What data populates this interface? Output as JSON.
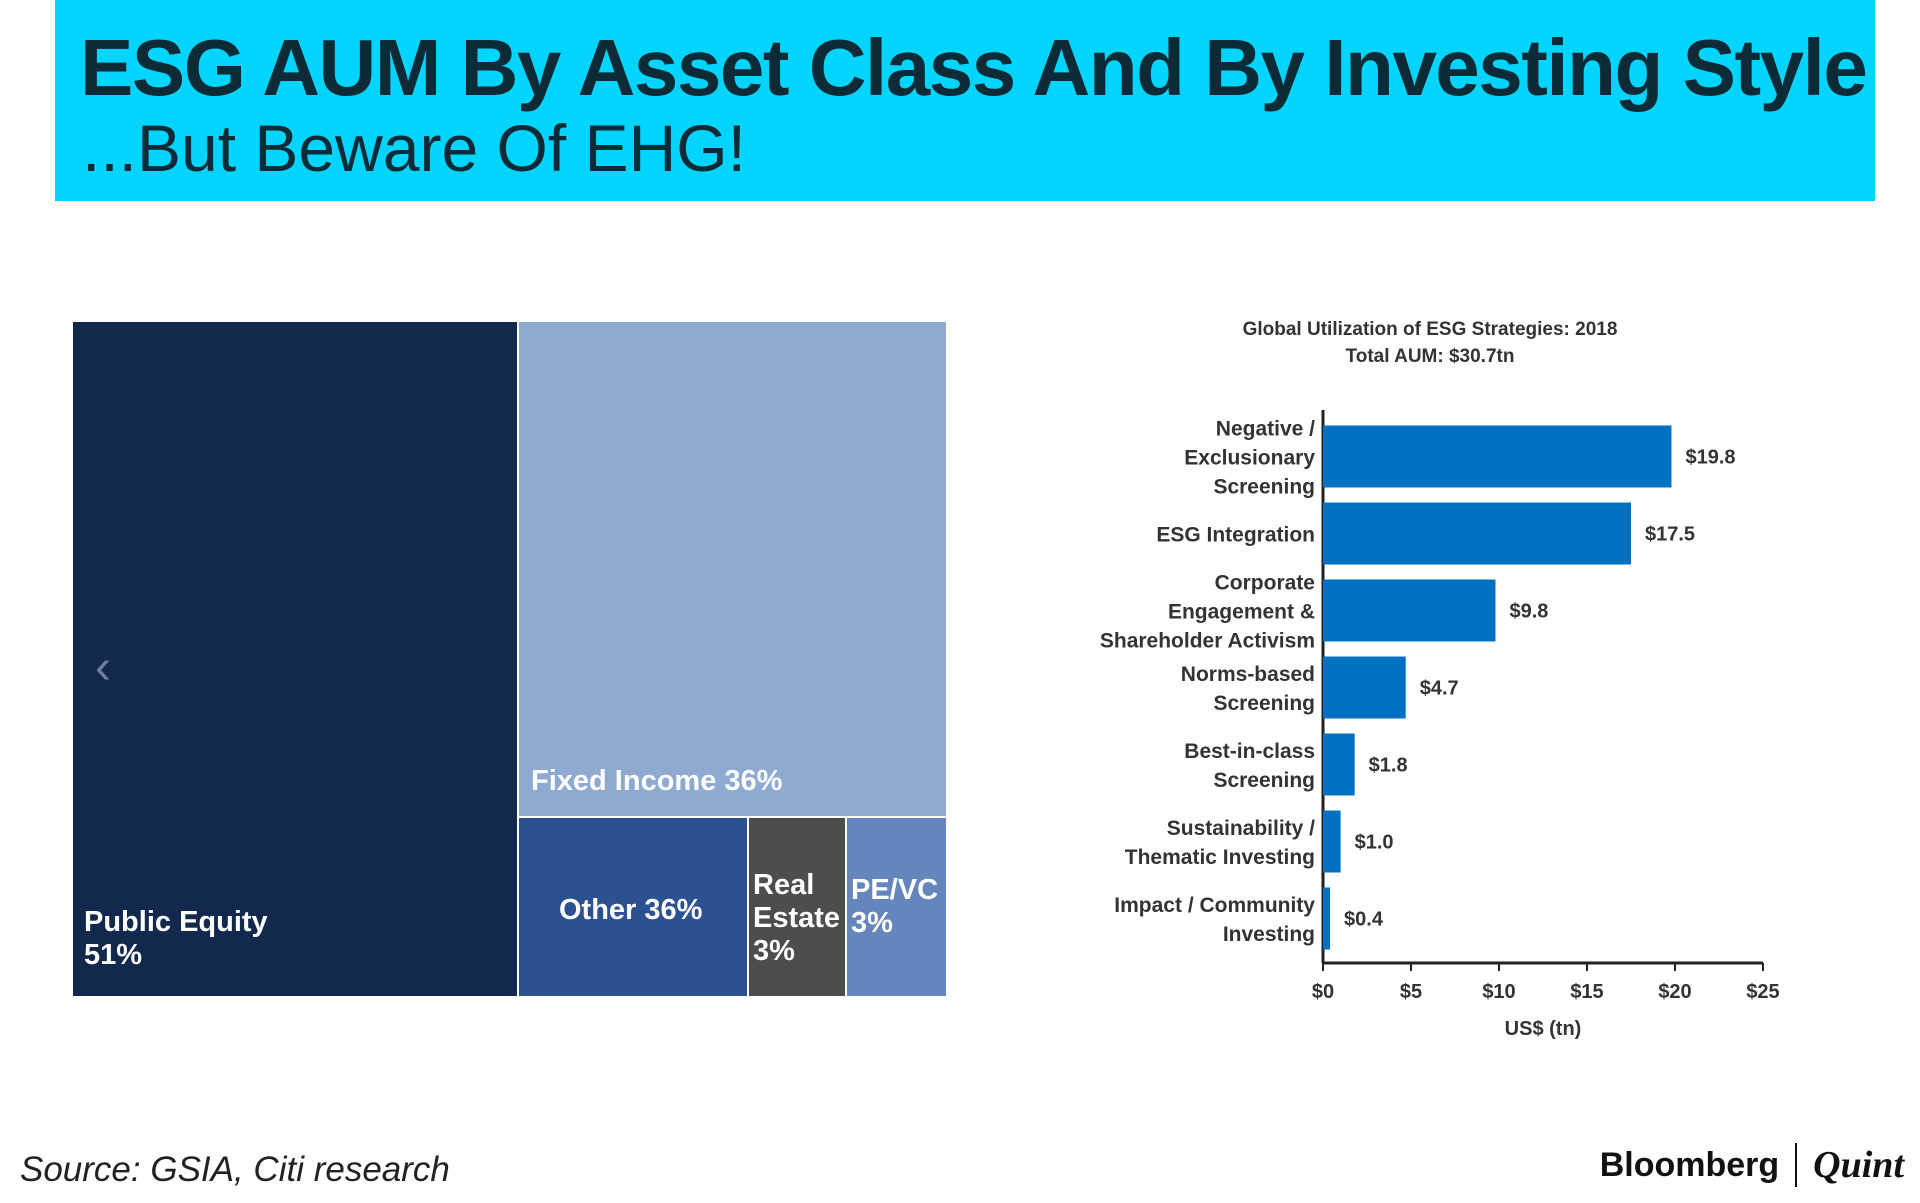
{
  "header": {
    "title": "ESG AUM By Asset Class And By Investing Style",
    "subtitle": "...But Beware Of EHG!"
  },
  "colors": {
    "banner": "#00d4ff",
    "bar": "#0070c0",
    "public_equity": "#13284d",
    "fixed_income": "#8eaad1",
    "other": "#2c5191",
    "real_estate": "#4d4d4d",
    "pe_vc": "#6585bd"
  },
  "chart_data": [
    {
      "type": "treemap",
      "title": "",
      "items": [
        {
          "name": "Public Equity",
          "label": "Public Equity\n51%",
          "value": 51
        },
        {
          "name": "Fixed Income",
          "label": "Fixed Income 36%",
          "value": 36
        },
        {
          "name": "Other",
          "label": "Other 36%",
          "value": 36
        },
        {
          "name": "Real Estate",
          "label": "Real\nEstate\n 3%",
          "value": 3
        },
        {
          "name": "PE/VC",
          "label": "PE/VC\n 3%",
          "value": 3
        }
      ]
    },
    {
      "type": "bar",
      "orientation": "horizontal",
      "title": "Global Utilization of ESG Strategies: 2018",
      "subtitle": "Total AUM: $30.7tn",
      "categories": [
        [
          "Negative /",
          "Exclusionary",
          "Screening"
        ],
        [
          "ESG Integration"
        ],
        [
          "Corporate",
          "Engagement &",
          "Shareholder Activism"
        ],
        [
          "Norms-based",
          "Screening"
        ],
        [
          "Best-in-class",
          "Screening"
        ],
        [
          "Sustainability /",
          "Thematic Investing"
        ],
        [
          "Impact / Community",
          "Investing"
        ]
      ],
      "values": [
        19.8,
        17.5,
        9.8,
        4.7,
        1.8,
        1.0,
        0.4
      ],
      "value_labels": [
        "$19.8",
        "$17.5",
        "$9.8",
        "$4.7",
        "$1.8",
        "$1.0",
        "$0.4"
      ],
      "xlim": [
        0,
        25
      ],
      "xticks": [
        0,
        5,
        10,
        15,
        20,
        25
      ],
      "xtick_labels": [
        "$0",
        "$5",
        "$10",
        "$15",
        "$20",
        "$25"
      ],
      "xlabel": "US$ (tn)",
      "ylabel": "",
      "grid": false,
      "legend": "none"
    }
  ],
  "footer": {
    "source": "Source: GSIA, Citi research",
    "brand_left": "Bloomberg",
    "brand_right": "Quint"
  },
  "icons": {
    "nav": "chevron-left-icon",
    "nav_glyph": "‹"
  }
}
